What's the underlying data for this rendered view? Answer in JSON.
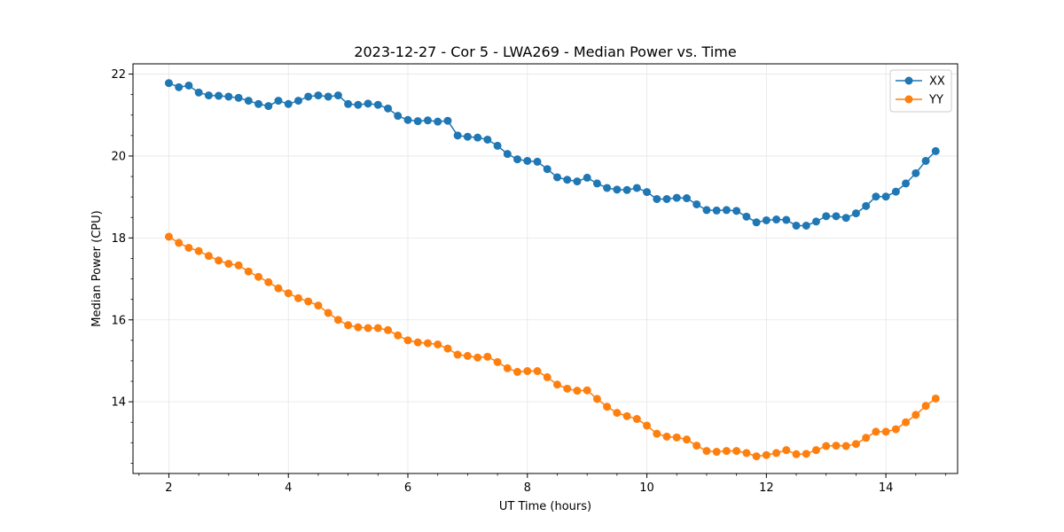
{
  "chart_data": {
    "type": "line",
    "title": "2023-12-27 - Cor 5 - LWA269 - Median Power vs. Time",
    "xlabel": "UT Time (hours)",
    "ylabel": "Median Power (CPU)",
    "xlim": [
      1.4,
      15.2
    ],
    "ylim": [
      12.25,
      22.25
    ],
    "xticks": [
      2,
      4,
      6,
      8,
      10,
      12,
      14
    ],
    "yticks": [
      14,
      16,
      18,
      20,
      22
    ],
    "grid": true,
    "legend_position": "top-right",
    "x": [
      2.0,
      2.167,
      2.333,
      2.5,
      2.667,
      2.833,
      3.0,
      3.167,
      3.333,
      3.5,
      3.667,
      3.833,
      4.0,
      4.167,
      4.333,
      4.5,
      4.667,
      4.833,
      5.0,
      5.167,
      5.333,
      5.5,
      5.667,
      5.833,
      6.0,
      6.167,
      6.333,
      6.5,
      6.667,
      6.833,
      7.0,
      7.167,
      7.333,
      7.5,
      7.667,
      7.833,
      8.0,
      8.167,
      8.333,
      8.5,
      8.667,
      8.833,
      9.0,
      9.167,
      9.333,
      9.5,
      9.667,
      9.833,
      10.0,
      10.167,
      10.333,
      10.5,
      10.667,
      10.833,
      11.0,
      11.167,
      11.333,
      11.5,
      11.667,
      11.833,
      12.0,
      12.167,
      12.333,
      12.5,
      12.667,
      12.833,
      13.0,
      13.167,
      13.333,
      13.5,
      13.667,
      13.833,
      14.0,
      14.167,
      14.333,
      14.5,
      14.667,
      14.833
    ],
    "series": [
      {
        "name": "XX",
        "color": "#1f77b4",
        "values": [
          21.78,
          21.68,
          21.72,
          21.55,
          21.48,
          21.47,
          21.45,
          21.42,
          21.35,
          21.27,
          21.22,
          21.35,
          21.27,
          21.35,
          21.45,
          21.48,
          21.45,
          21.48,
          21.27,
          21.25,
          21.28,
          21.25,
          21.16,
          20.98,
          20.88,
          20.85,
          20.87,
          20.84,
          20.86,
          20.5,
          20.47,
          20.45,
          20.4,
          20.25,
          20.05,
          19.92,
          19.88,
          19.86,
          19.68,
          19.48,
          19.42,
          19.38,
          19.47,
          19.33,
          19.22,
          19.18,
          19.17,
          19.22,
          19.12,
          18.95,
          18.95,
          18.98,
          18.97,
          18.82,
          18.68,
          18.67,
          18.68,
          18.66,
          18.52,
          18.38,
          18.43,
          18.45,
          18.44,
          18.3,
          18.3,
          18.4,
          18.53,
          18.53,
          18.49,
          18.6,
          18.78,
          19.01,
          19.01,
          19.13,
          19.33,
          19.58,
          19.88,
          20.12
        ]
      },
      {
        "name": "YY",
        "color": "#ff7f0e",
        "values": [
          18.03,
          17.88,
          17.76,
          17.68,
          17.56,
          17.45,
          17.37,
          17.33,
          17.18,
          17.05,
          16.92,
          16.77,
          16.65,
          16.53,
          16.45,
          16.35,
          16.17,
          16.0,
          15.87,
          15.82,
          15.8,
          15.8,
          15.75,
          15.62,
          15.5,
          15.45,
          15.43,
          15.4,
          15.3,
          15.15,
          15.12,
          15.08,
          15.1,
          14.97,
          14.82,
          14.73,
          14.75,
          14.75,
          14.6,
          14.42,
          14.32,
          14.27,
          14.28,
          14.07,
          13.88,
          13.73,
          13.65,
          13.58,
          13.42,
          13.22,
          13.15,
          13.13,
          13.08,
          12.93,
          12.8,
          12.78,
          12.8,
          12.8,
          12.75,
          12.67,
          12.7,
          12.75,
          12.82,
          12.72,
          12.73,
          12.82,
          12.92,
          12.93,
          12.92,
          12.97,
          13.12,
          13.27,
          13.27,
          13.33,
          13.5,
          13.68,
          13.9,
          14.08
        ]
      }
    ]
  }
}
